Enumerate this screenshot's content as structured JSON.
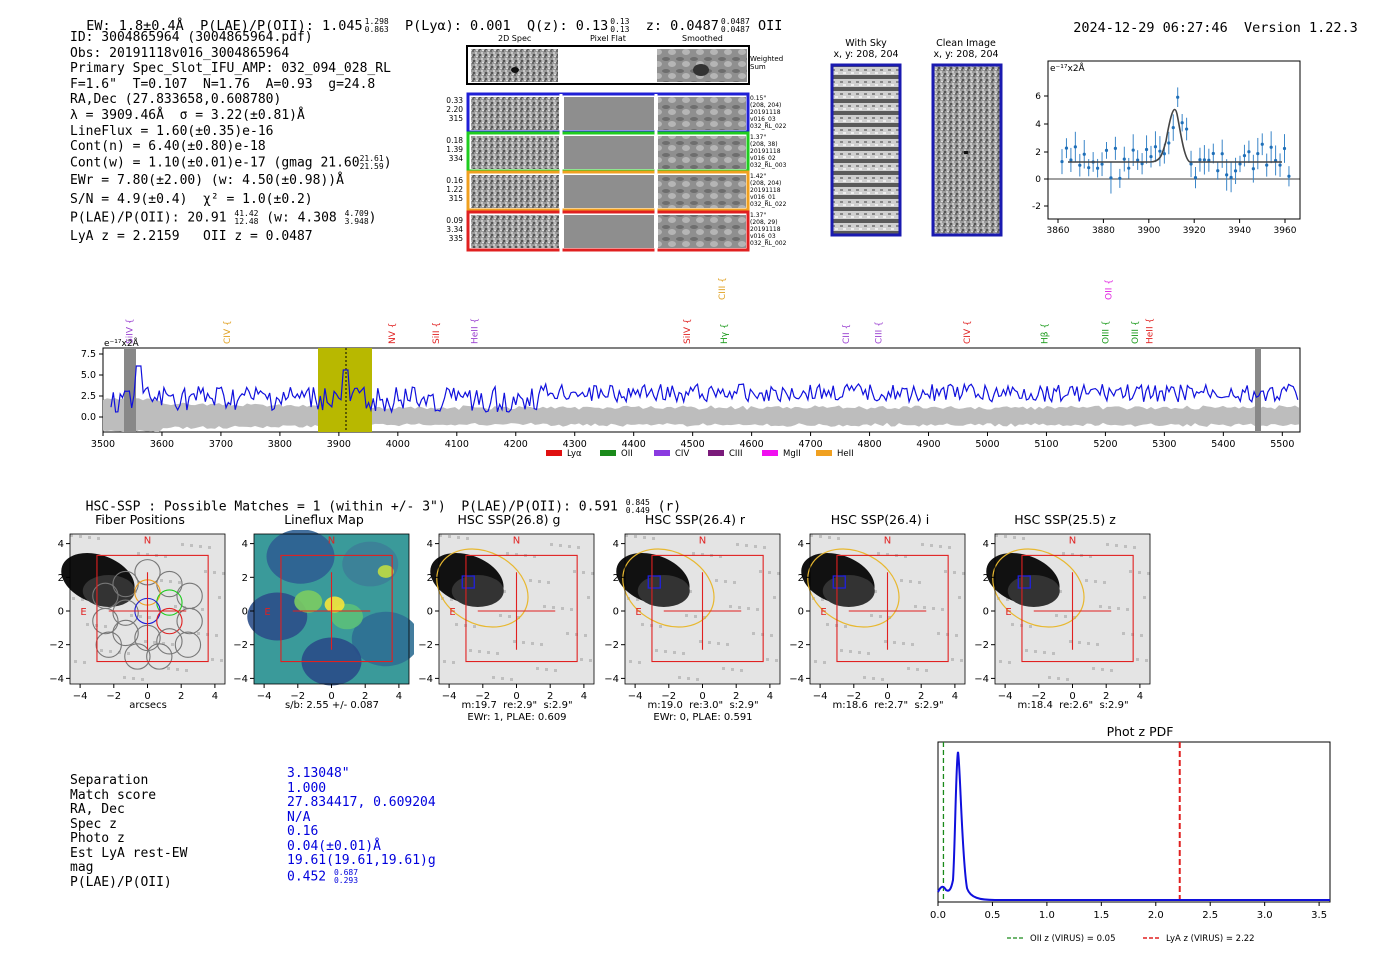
{
  "header": {
    "ew": "EW: 1.8±0.4Å",
    "plae_label": "P(LAE)/P(OII): 1.045",
    "plae_hi": "1.298",
    "plae_lo": "0.863",
    "plya": "P(Lyα): 0.001",
    "qz": "Q(z): 0.13",
    "qz_hi": "0.13",
    "qz_lo": "0.13",
    "z": "z: 0.0487",
    "z_hi": "0.0487",
    "z_lo": "0.0487",
    "z_line": "OII",
    "timestamp": "2024-12-29 06:27:46",
    "version": "Version 1.22.3"
  },
  "info": {
    "lines": [
      "ID: 3004865964 (3004865964.pdf)",
      "Obs: 20191118v016_3004865964",
      "Primary Spec_Slot_IFU_AMP: 032_094_028_RL",
      "F=1.6\"  T=0.107  N=1.76  A=0.93  g=24.8",
      "RA,Dec (27.833658,0.608780)",
      "λ = 3909.46Å  σ = 3.22(±0.81)Å",
      "LineFlux = 1.60(±0.35)e-16",
      "Cont(n) = 6.40(±0.80)e-18"
    ],
    "cont_w": "Cont(w) = 1.10(±0.01)e-17 (gmag 21.60",
    "cont_w_hi": "21.61",
    "cont_w_lo": "21.59",
    "ewr": "EWr = 7.80(±2.00) (w: 4.50(±0.98))Å",
    "sn": "S/N = 4.9(±0.4)  χ² = 1.0(±0.2)",
    "plae2": "P(LAE)/P(OII): 20.91",
    "plae2_hi": "41.42",
    "plae2_lo": "12.48",
    "plae2_w": "(w: 4.308",
    "plae2_w_hi": "4.709",
    "plae2_w_lo": "3.948",
    "lyaz": "LyA z = 2.2159   OII z = 0.0487"
  },
  "spec2d": {
    "col_labels": [
      "2D Spec",
      "Pixel Flat",
      "Smoothed"
    ],
    "weighted_sum": "Weighted\nSum",
    "fibers": [
      {
        "nums": "0.33\n2.20\n315",
        "info": "0.15\"\n(208, 204)\n20191118\nv016_03\n032_RL_022",
        "color": "#1f1fd6"
      },
      {
        "nums": "0.18\n1.39\n334",
        "info": "1.37\"\n(208, 38)\n20191118\nv016_02\n032_RL_003",
        "color": "#1fcc1f"
      },
      {
        "nums": "0.16\n1.22\n315",
        "info": "1.42\"\n(208, 204)\n20191118\nv016_01\n032_RL_022",
        "color": "#f0a020"
      },
      {
        "nums": "0.09\n3.34\n335",
        "info": "1.37\"\n(208, 29)\n20191118\nv016_03\n032_RL_002",
        "color": "#e02020"
      }
    ]
  },
  "sky": {
    "with_sky_title": "With Sky",
    "with_sky_xy": "x, y: 208, 204",
    "clean_title": "Clean Image",
    "clean_xy": "x, y: 208, 204"
  },
  "zoom_spec": {
    "unit": "e⁻¹⁷x2Å",
    "x_ticks": [
      "3860",
      "3880",
      "3900",
      "3920",
      "3940",
      "3960"
    ],
    "y_ticks": [
      "6",
      "4",
      "2",
      "0",
      "-2"
    ]
  },
  "full_spec": {
    "unit": "e⁻¹⁷x2Å",
    "y_ticks": [
      "7.5",
      "5.0",
      "2.5",
      "0.0"
    ],
    "x_ticks": [
      "3500",
      "3600",
      "3700",
      "3800",
      "3900",
      "4000",
      "4100",
      "4200",
      "4300",
      "4400",
      "4500",
      "4600",
      "4700",
      "4800",
      "4900",
      "5000",
      "5100",
      "5200",
      "5300",
      "5400",
      "5500"
    ],
    "lines": [
      {
        "name": "SiIV",
        "wave": 3545,
        "color": "#9a40d0"
      },
      {
        "name": "CIV",
        "wave": 3710,
        "color": "#e0a020"
      },
      {
        "name": "NV",
        "wave": 3990,
        "color": "#e02020"
      },
      {
        "name": "SiII",
        "wave": 4065,
        "color": "#e02020"
      },
      {
        "name": "HeII",
        "wave": 4130,
        "color": "#9a40d0"
      },
      {
        "name": "SiIV",
        "wave": 4490,
        "color": "#e02020"
      },
      {
        "name": "CIII",
        "wave": 4550,
        "color": "#e0a020",
        "high": true
      },
      {
        "name": "Hγ",
        "wave": 4553,
        "color": "#1a9a1a"
      },
      {
        "name": "CII",
        "wave": 4760,
        "color": "#9a40d0"
      },
      {
        "name": "CIII",
        "wave": 4815,
        "color": "#9a40d0"
      },
      {
        "name": "CIV",
        "wave": 4965,
        "color": "#e02020"
      },
      {
        "name": "Hβ",
        "wave": 5097,
        "color": "#1a9a1a"
      },
      {
        "name": "OII",
        "wave": 5205,
        "color": "#e020e0",
        "high": true
      },
      {
        "name": "OIII",
        "wave": 5200,
        "color": "#1a9a1a"
      },
      {
        "name": "OIII",
        "wave": 5250,
        "color": "#1a9a1a"
      },
      {
        "name": "HeII",
        "wave": 5275,
        "color": "#e02020"
      }
    ],
    "legend": [
      {
        "name": "Lyα",
        "color": "#e01010"
      },
      {
        "name": "OII",
        "color": "#1a8a1a"
      },
      {
        "name": "CIV",
        "color": "#8a3ae0"
      },
      {
        "name": "CIII",
        "color": "#7a1a7a"
      },
      {
        "name": "MgII",
        "color": "#f010f0"
      },
      {
        "name": "HeII",
        "color": "#f0a020"
      }
    ]
  },
  "hsc": {
    "summary": "HSC-SSP : Possible Matches = 1 (within +/- 3\")  P(LAE)/P(OII): 0.591",
    "summary_hi": "0.845",
    "summary_lo": "0.449",
    "summary_band": "(r)",
    "panels": [
      {
        "title": "Fiber Positions",
        "cap1": "arcsecs",
        "cap2": ""
      },
      {
        "title": "Lineflux Map",
        "cap1": "s/b: 2.55 +/- 0.087",
        "cap2": ""
      },
      {
        "title": "HSC SSP(26.8) g",
        "cap1": "m:19.7  re:2.9\"  s:2.9\"",
        "cap2": "EWr: 1, PLAE: 0.609"
      },
      {
        "title": "HSC SSP(26.4) r",
        "cap1": "m:19.0  re:3.0\"  s:2.9\"",
        "cap2": "EWr: 0, PLAE: 0.591"
      },
      {
        "title": "HSC SSP(26.4) i",
        "cap1": "m:18.6  re:2.7\"  s:2.9\"",
        "cap2": ""
      },
      {
        "title": "HSC SSP(25.5) z",
        "cap1": "m:18.4  re:2.6\"  s:2.9\"",
        "cap2": ""
      }
    ],
    "ticks": [
      "−4",
      "−2",
      "0",
      "2",
      "4"
    ],
    "yticks": [
      "4",
      "2",
      "0",
      "−2",
      "−4"
    ],
    "north": "N",
    "east": "E"
  },
  "match": {
    "labels": [
      "Separation",
      "Match score",
      "RA, Dec",
      "Spec z",
      "Photo z",
      "Est LyA rest-EW",
      "mag",
      "P(LAE)/P(OII)"
    ],
    "values": [
      "3.13048\"",
      "1.000",
      "27.834417, 0.609204",
      "N/A",
      "0.16",
      "0.04(±0.01)Å",
      "19.61(19.61,19.61)g",
      "0.452"
    ],
    "plae_hi": "0.687",
    "plae_lo": "0.293"
  },
  "photz": {
    "title": "Phot z PDF",
    "x_ticks": [
      "0.0",
      "0.5",
      "1.0",
      "1.5",
      "2.0",
      "2.5",
      "3.0",
      "3.5"
    ],
    "oii_z": 0.05,
    "lya_z": 2.22,
    "legend_oii": "OII z (VIRUS) = 0.05",
    "legend_lya": "LyA z (VIRUS) = 2.22"
  }
}
